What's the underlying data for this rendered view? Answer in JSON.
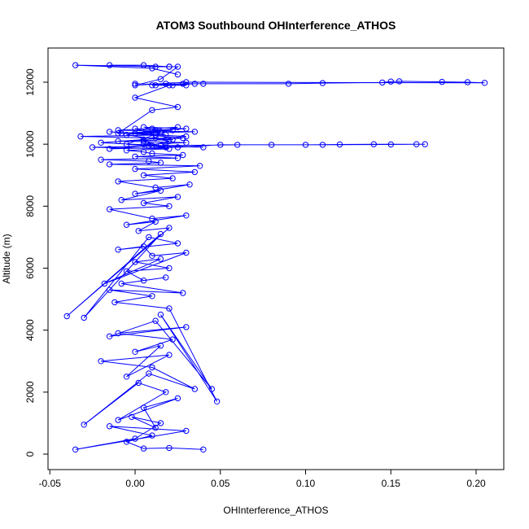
{
  "chart_data": {
    "type": "scatter",
    "title": "ATOM3 Southbound OHInterference_ATHOS",
    "xlabel": "OHInterference_ATHOS",
    "ylabel": "Altitude (m)",
    "xlim": [
      -0.05,
      0.21
    ],
    "ylim": [
      0,
      13000
    ],
    "x_ticks": [
      -0.05,
      0.0,
      0.05,
      0.1,
      0.15,
      0.2
    ],
    "x_tick_labels": [
      "-0.05",
      "0.00",
      "0.05",
      "0.10",
      "0.15",
      "0.20"
    ],
    "y_ticks": [
      0,
      2000,
      4000,
      6000,
      8000,
      10000,
      12000
    ],
    "y_tick_labels": [
      "0",
      "2000",
      "4000",
      "6000",
      "8000",
      "10000",
      "12000"
    ],
    "grid": false,
    "legend": "none",
    "marker": "open-circle",
    "connected": true,
    "color": "#0000ff",
    "series": [
      {
        "x": [
          0.04,
          0.02,
          0.005,
          -0.005,
          0.01,
          -0.015,
          0.03,
          -0.035,
          0.0,
          0.015,
          -0.002,
          0.012,
          0.005,
          0.025,
          -0.01,
          0.018,
          0.002,
          -0.03,
          0.008,
          0.035,
          0.01,
          -0.02,
          0.02,
          -0.005,
          0.015,
          0.0,
          0.022,
          -0.01,
          0.03,
          -0.015,
          0.012,
          0.045,
          0.015,
          0.048,
          0.02,
          -0.012,
          0.01,
          -0.015,
          0.028,
          -0.008,
          0.018,
          0.005,
          -0.005,
          0.02,
          0.0,
          0.015,
          -0.018,
          0.03,
          0.01,
          0.005,
          -0.01,
          0.025,
          0.008,
          -0.03,
          0.015,
          -0.04,
          0.02,
          0.002,
          0.012,
          -0.005,
          0.03,
          0.01,
          -0.015,
          0.02,
          0.005,
          0.025,
          -0.008,
          0.015,
          0.0,
          0.032,
          0.012,
          -0.01,
          0.022,
          0.005,
          0.035,
          0.0,
          0.038,
          -0.015,
          0.015,
          0.008,
          -0.02,
          0.025,
          0.0,
          0.028,
          0.01,
          0.005,
          -0.005,
          0.02,
          -0.025,
          0.015,
          0.005,
          0.03,
          -0.01,
          0.022,
          0.012,
          -0.032,
          0.018,
          0.0,
          0.035,
          -0.01,
          0.01,
          0.025,
          -0.005,
          0.018,
          0.005,
          0.028,
          -0.015,
          0.012,
          0.0,
          0.022,
          -0.008,
          0.03,
          0.005,
          -0.02,
          0.018,
          0.04,
          0.01,
          0.06,
          0.08,
          0.1,
          0.12,
          0.14,
          0.165,
          0.17,
          0.15,
          0.11,
          0.05,
          0.025,
          -0.015,
          0.008,
          0.02,
          -0.005,
          0.012,
          0.03,
          0.005,
          0.015,
          -0.01,
          0.01,
          0.025,
          0.0,
          0.02,
          0.018,
          0.012,
          0.03,
          0.0,
          0.022,
          0.035,
          0.01,
          0.028,
          0.04,
          0.09,
          0.11,
          0.145,
          0.15,
          0.155,
          0.18,
          0.195,
          0.205,
          0.03,
          0.0,
          0.015,
          0.025,
          0.02,
          0.012,
          -0.015,
          0.005,
          0.02,
          -0.035,
          0.01,
          0.025
        ],
        "y": [
          150,
          200,
          180,
          400,
          600,
          900,
          750,
          150,
          500,
          1000,
          1200,
          850,
          1500,
          1800,
          1100,
          2000,
          2300,
          950,
          2600,
          2100,
          2800,
          3000,
          3200,
          2500,
          3500,
          3300,
          3700,
          3900,
          4100,
          3800,
          4300,
          2100,
          4500,
          1700,
          4700,
          4900,
          5100,
          5300,
          5200,
          5500,
          5700,
          5600,
          5900,
          6000,
          6200,
          6300,
          5500,
          6500,
          6400,
          6700,
          6600,
          6800,
          7000,
          4400,
          7100,
          4450,
          7300,
          7200,
          7500,
          7400,
          7700,
          7600,
          7900,
          8000,
          8100,
          8300,
          8200,
          8500,
          8400,
          8700,
          8600,
          8800,
          8900,
          9000,
          9100,
          9200,
          9300,
          9350,
          9400,
          9450,
          9500,
          9550,
          9600,
          9650,
          9700,
          9750,
          9800,
          9850,
          9900,
          9950,
          10000,
          10050,
          10100,
          10150,
          10200,
          10250,
          10300,
          10350,
          10400,
          10450,
          10500,
          10550,
          10000,
          9900,
          10100,
          10200,
          10400,
          10300,
          10500,
          10450,
          10350,
          10250,
          10150,
          10050,
          9950,
          9900,
          9950,
          9980,
          9980,
          9980,
          9990,
          10000,
          10000,
          10000,
          9990,
          9980,
          9980,
          9900,
          9850,
          9950,
          10100,
          10300,
          10450,
          10500,
          10550,
          10400,
          10350,
          11100,
          11200,
          11500,
          11900,
          11950,
          11900,
          11900,
          11950,
          11900,
          11950,
          11900,
          11950,
          11950,
          11950,
          11970,
          11990,
          12020,
          12030,
          12010,
          12000,
          11980,
          12000,
          11900,
          12100,
          12500,
          12500,
          12500,
          12550,
          12550,
          12500,
          12550,
          12450,
          12250
        ]
      }
    ]
  }
}
